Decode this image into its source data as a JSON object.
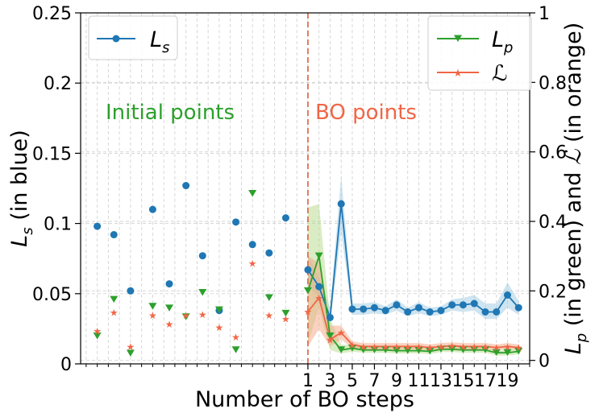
{
  "chart_data": {
    "type": "line",
    "xlabel": "Number of BO steps",
    "ylabel_left": "L_s (in blue)",
    "ylabel_right": "L_p (in green) and ℒ (in orange)",
    "xlim": [
      -19.5,
      21
    ],
    "ylim_left": [
      0,
      0.25
    ],
    "ylim_right": [
      -0.01,
      1.0
    ],
    "x_tick_labels": [
      "1",
      "3",
      "5",
      "7",
      "9",
      "11",
      "13",
      "15",
      "17",
      "19"
    ],
    "y_left_tick_labels": [
      "0",
      "0.05",
      "0.1",
      "0.15",
      "0.2",
      "0.25"
    ],
    "y_right_tick_labels": [
      "0",
      "0.2",
      "0.4",
      "0.6",
      "0.8",
      "1"
    ],
    "grid": true,
    "divider_x": 1,
    "annotations": [
      {
        "text": "Initial points",
        "color": "#2ca02c"
      },
      {
        "text": "BO points",
        "color": "#f06646"
      }
    ],
    "legend_left": {
      "placement": "top-left",
      "entries": [
        {
          "label": "L",
          "sub": "s",
          "color": "#1f77b4"
        }
      ]
    },
    "legend_right": {
      "placement": "top-right",
      "entries": [
        {
          "label": "L",
          "sub": "p",
          "color": "#2ca02c"
        },
        {
          "label": "ℒ",
          "sub": "",
          "color": "#f06646"
        }
      ]
    },
    "initial_points": {
      "x": [
        -18,
        -16.5,
        -15,
        -13,
        -11.5,
        -10,
        -8.5,
        -7,
        -5.5,
        -4,
        -2.5,
        -1
      ],
      "Ls": [
        0.098,
        0.092,
        0.052,
        0.11,
        0.057,
        0.127,
        0.077,
        0.038,
        0.101,
        0.085,
        0.079,
        0.104
      ],
      "Lp": [
        0.07,
        0.175,
        0.02,
        0.155,
        0.15,
        0.125,
        0.195,
        0.145,
        0.03,
        0.48,
        0.18,
        0.135
      ],
      "L_orange": [
        0.085,
        0.138,
        0.04,
        0.13,
        0.105,
        0.13,
        0.133,
        0.095,
        0.068,
        0.28,
        0.13,
        0.12
      ]
    },
    "series": [
      {
        "name": "L_s",
        "axis": "left",
        "color": "#1f77b4",
        "x": [
          1,
          2,
          3,
          4,
          5,
          6,
          7,
          8,
          9,
          10,
          11,
          12,
          13,
          14,
          15,
          16,
          17,
          18,
          19,
          20
        ],
        "values": [
          0.067,
          0.055,
          0.033,
          0.114,
          0.039,
          0.039,
          0.04,
          0.038,
          0.042,
          0.037,
          0.04,
          0.037,
          0.038,
          0.042,
          0.042,
          0.043,
          0.037,
          0.037,
          0.049,
          0.04
        ],
        "band_lower": [
          0.057,
          0.047,
          0.028,
          0.094,
          0.035,
          0.035,
          0.036,
          0.035,
          0.038,
          0.034,
          0.036,
          0.034,
          0.035,
          0.038,
          0.037,
          0.038,
          0.032,
          0.032,
          0.04,
          0.035
        ],
        "band_upper": [
          0.077,
          0.062,
          0.04,
          0.134,
          0.043,
          0.043,
          0.044,
          0.041,
          0.046,
          0.04,
          0.044,
          0.04,
          0.041,
          0.046,
          0.047,
          0.049,
          0.043,
          0.043,
          0.058,
          0.045
        ]
      },
      {
        "name": "L_p",
        "axis": "right",
        "color": "#2ca02c",
        "x": [
          1,
          2,
          3,
          4,
          5,
          6,
          7,
          8,
          9,
          10,
          11,
          12,
          13,
          14,
          15,
          16,
          17,
          18,
          19,
          20
        ],
        "values": [
          0.2,
          0.3,
          0.07,
          0.03,
          0.035,
          0.03,
          0.03,
          0.03,
          0.028,
          0.028,
          0.028,
          0.026,
          0.032,
          0.032,
          0.03,
          0.03,
          0.03,
          0.022,
          0.022,
          0.026
        ],
        "band_lower": [
          0.05,
          0.15,
          0.03,
          0.02,
          0.025,
          0.022,
          0.022,
          0.022,
          0.02,
          0.02,
          0.02,
          0.018,
          0.024,
          0.024,
          0.022,
          0.022,
          0.022,
          0.014,
          0.014,
          0.018
        ],
        "band_upper": [
          0.44,
          0.45,
          0.12,
          0.045,
          0.045,
          0.04,
          0.04,
          0.04,
          0.036,
          0.036,
          0.036,
          0.034,
          0.04,
          0.04,
          0.038,
          0.038,
          0.038,
          0.03,
          0.03,
          0.034
        ]
      },
      {
        "name": "ℒ",
        "axis": "right",
        "color": "#f06646",
        "x": [
          1,
          2,
          3,
          4,
          5,
          6,
          7,
          8,
          9,
          10,
          11,
          12,
          13,
          14,
          15,
          16,
          17,
          18,
          19,
          20
        ],
        "values": [
          0.14,
          0.18,
          0.06,
          0.08,
          0.045,
          0.04,
          0.04,
          0.04,
          0.04,
          0.04,
          0.04,
          0.037,
          0.04,
          0.042,
          0.04,
          0.04,
          0.04,
          0.037,
          0.04,
          0.037
        ],
        "band_lower": [
          0.04,
          0.09,
          0.04,
          0.06,
          0.035,
          0.032,
          0.032,
          0.032,
          0.032,
          0.032,
          0.032,
          0.03,
          0.032,
          0.034,
          0.032,
          0.032,
          0.032,
          0.03,
          0.032,
          0.03
        ],
        "band_upper": [
          0.3,
          0.28,
          0.1,
          0.1,
          0.055,
          0.05,
          0.05,
          0.05,
          0.05,
          0.05,
          0.05,
          0.046,
          0.05,
          0.052,
          0.05,
          0.05,
          0.05,
          0.046,
          0.05,
          0.046
        ]
      }
    ]
  }
}
